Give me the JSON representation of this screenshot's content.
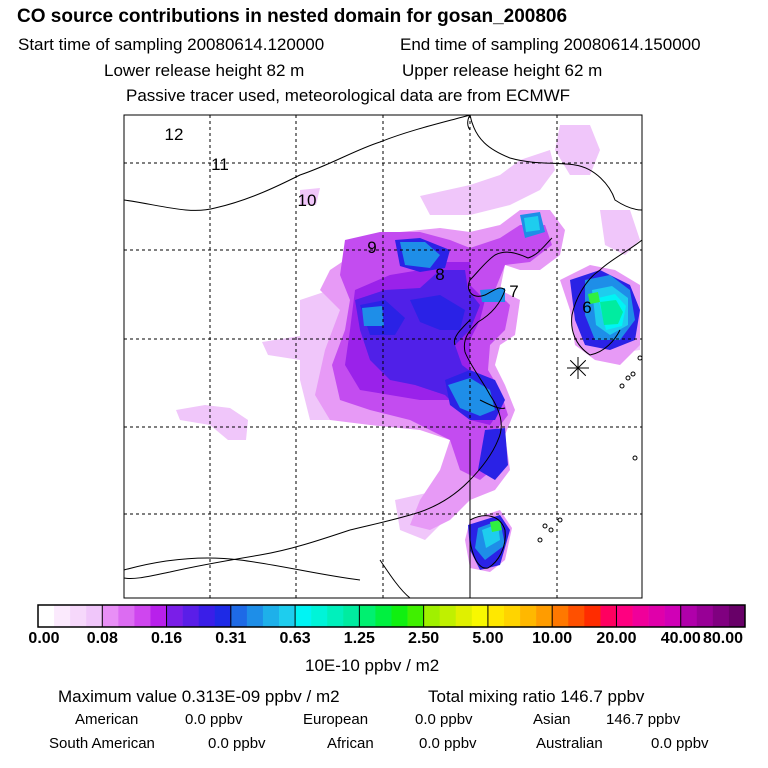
{
  "chart_data": {
    "type": "heatmap",
    "title": "CO  source contributions in nested domain for gosan_200806",
    "start_label": "Start time of sampling 20080614.120000",
    "end_label": "End time of sampling 20080614.150000",
    "lower_label": "Lower release height   82 m",
    "upper_label": "Upper release height   62 m",
    "note": "Passive tracer used, meteorological data are from ECMWF",
    "day_labels": [
      "12",
      "11",
      "10",
      "9",
      "8",
      "7",
      "6"
    ],
    "colorbar": {
      "ticks": [
        "0.00",
        "0.08",
        "0.16",
        "0.31",
        "0.63",
        "1.25",
        "2.50",
        "5.00",
        "10.00",
        "20.00",
        "40.00",
        "80.00"
      ],
      "units": "10E-10 ppbv / m2",
      "colors": [
        [
          "#ffffff",
          "#fbeafd",
          "#f6d8fb",
          "#f0c6fa"
        ],
        [
          "#e88ff6",
          "#dc6cf2",
          "#cf46ef",
          "#b820eb"
        ],
        [
          "#7a1ee8",
          "#5a1ee8",
          "#3a1ee8",
          "#1e2ae6"
        ],
        [
          "#1e6ae6",
          "#1e8ee8",
          "#1eb0ea",
          "#1ecdee"
        ],
        [
          "#00f4f4",
          "#00f4d8",
          "#00f0bc",
          "#00eca0"
        ],
        [
          "#00f070",
          "#00f040",
          "#10f010",
          "#40f000"
        ],
        [
          "#a0f000",
          "#c0f000",
          "#e0f000",
          "#f8f800"
        ],
        [
          "#ffe800",
          "#ffd400",
          "#ffb800",
          "#ff9c00"
        ],
        [
          "#ff7800",
          "#ff5000",
          "#ff2c00",
          "#ff0060"
        ],
        [
          "#ff0080",
          "#f0009a",
          "#e000aa",
          "#d000b6"
        ],
        [
          "#b000aa",
          "#980096",
          "#800080",
          "#680068"
        ]
      ]
    },
    "stats": {
      "max": "Maximum value  0.313E-09 ppbv / m2",
      "total": "Total mixing ratio      146.7 ppbv"
    },
    "regions": [
      {
        "name": "American",
        "value": "0.0 ppbv"
      },
      {
        "name": "European",
        "value": "0.0 ppbv"
      },
      {
        "name": "Asian",
        "value": "146.7 ppbv"
      },
      {
        "name": "South American",
        "value": "0.0 ppbv"
      },
      {
        "name": "African",
        "value": "0.0 ppbv"
      },
      {
        "name": "Australian",
        "value": "0.0 ppbv"
      }
    ]
  }
}
